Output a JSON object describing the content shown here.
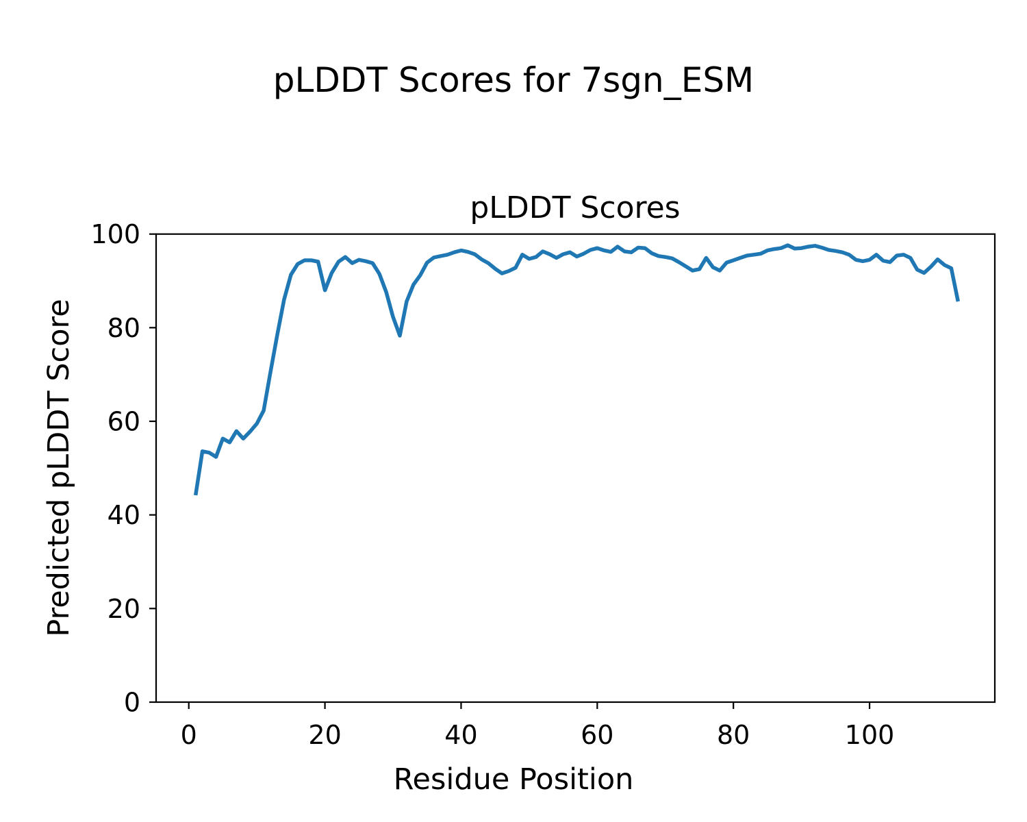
{
  "figure": {
    "suptitle": "pLDDT Scores for 7sgn_ESM",
    "background": "#ffffff"
  },
  "chart_data": {
    "type": "line",
    "title": "pLDDT Scores",
    "suptitle": "pLDDT Scores for 7sgn_ESM",
    "xlabel": "Residue Position",
    "ylabel": "Predicted pLDDT Score",
    "xlim": [
      -4.8,
      118.4
    ],
    "ylim": [
      0,
      100
    ],
    "xticks": [
      0,
      20,
      40,
      60,
      80,
      100
    ],
    "yticks": [
      0,
      20,
      40,
      60,
      80,
      100
    ],
    "grid": false,
    "legend": "none",
    "line_color": "#1f77b4",
    "axis_color": "#000000",
    "series": [
      {
        "name": "pLDDT",
        "x": [
          1,
          2,
          3,
          4,
          5,
          6,
          7,
          8,
          9,
          10,
          11,
          12,
          13,
          14,
          15,
          16,
          17,
          18,
          19,
          20,
          21,
          22,
          23,
          24,
          25,
          26,
          27,
          28,
          29,
          30,
          31,
          32,
          33,
          34,
          35,
          36,
          37,
          38,
          39,
          40,
          41,
          42,
          43,
          44,
          45,
          46,
          47,
          48,
          49,
          50,
          51,
          52,
          53,
          54,
          55,
          56,
          57,
          58,
          59,
          60,
          61,
          62,
          63,
          64,
          65,
          66,
          67,
          68,
          69,
          70,
          71,
          72,
          73,
          74,
          75,
          76,
          77,
          78,
          79,
          80,
          81,
          82,
          83,
          84,
          85,
          86,
          87,
          88,
          89,
          90,
          91,
          92,
          93,
          94,
          95,
          96,
          97,
          98,
          99,
          100,
          101,
          102,
          103,
          104,
          105,
          106,
          107,
          108,
          109,
          110,
          111,
          112,
          113
        ],
        "y": [
          44.2,
          53.6,
          53.3,
          52.4,
          56.3,
          55.5,
          57.9,
          56.3,
          57.8,
          59.5,
          62.3,
          70.5,
          78.5,
          86.0,
          91.3,
          93.6,
          94.4,
          94.4,
          94.1,
          88.0,
          91.7,
          94.1,
          95.1,
          93.8,
          94.5,
          94.2,
          93.8,
          91.5,
          87.6,
          82.3,
          78.3,
          85.6,
          89.2,
          91.2,
          93.9,
          95.0,
          95.3,
          95.6,
          96.1,
          96.5,
          96.2,
          95.7,
          94.6,
          93.8,
          92.6,
          91.6,
          92.1,
          92.8,
          95.6,
          94.7,
          95.1,
          96.3,
          95.7,
          94.9,
          95.7,
          96.1,
          95.2,
          95.8,
          96.6,
          97.0,
          96.5,
          96.2,
          97.3,
          96.3,
          96.1,
          97.1,
          97.0,
          95.9,
          95.3,
          95.1,
          94.8,
          94.0,
          93.1,
          92.2,
          92.5,
          94.9,
          92.9,
          92.2,
          93.9,
          94.4,
          94.9,
          95.4,
          95.6,
          95.8,
          96.5,
          96.8,
          97.0,
          97.6,
          96.9,
          97.0,
          97.3,
          97.5,
          97.1,
          96.6,
          96.4,
          96.1,
          95.6,
          94.5,
          94.2,
          94.5,
          95.6,
          94.3,
          94.0,
          95.4,
          95.6,
          94.9,
          92.4,
          91.7,
          93.0,
          94.6,
          93.4,
          92.7,
          85.6
        ]
      }
    ]
  }
}
